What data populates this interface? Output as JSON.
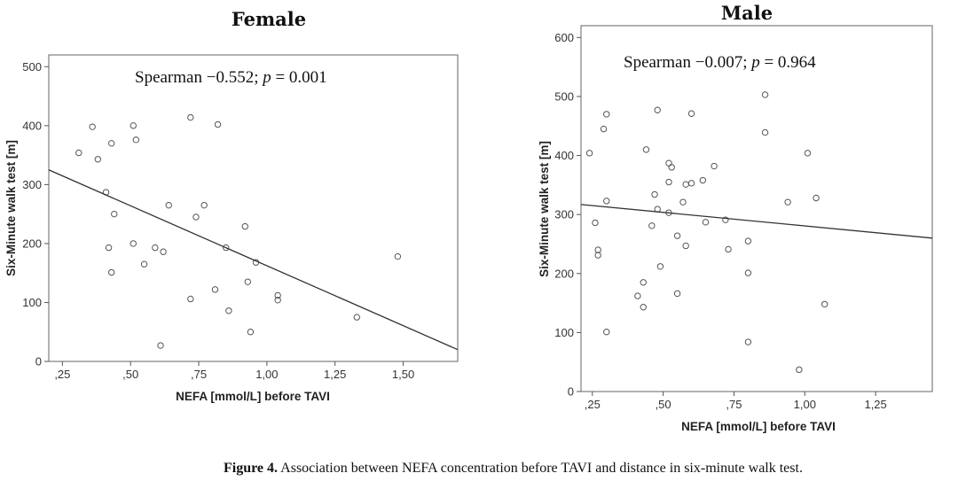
{
  "figure": {
    "caption_label": "Figure 4.",
    "caption_text": "Association between NEFA concentration before TAVI and distance in six-minute walk test."
  },
  "chart_data": [
    {
      "type": "scatter",
      "title": "Female",
      "annotation": {
        "prefix": "Spearman −0.552; ",
        "p_symbol": "p",
        "p_value": " = 0.001"
      },
      "xlabel": "NEFA [mmol/L] before TAVI",
      "ylabel": "Six-Minute walk test [m]",
      "xlim": [
        0.2,
        1.7
      ],
      "ylim": [
        0,
        520
      ],
      "xticks": [
        0.25,
        0.5,
        0.75,
        1.0,
        1.25,
        1.5
      ],
      "xtick_labels": [
        ",25",
        ",50",
        ",75",
        "1,00",
        "1,25",
        "1,50"
      ],
      "yticks": [
        0,
        100,
        200,
        300,
        400,
        500
      ],
      "ytick_labels": [
        "0",
        "100",
        "200",
        "300",
        "400",
        "500"
      ],
      "points": [
        {
          "x": 0.31,
          "y": 354
        },
        {
          "x": 0.36,
          "y": 398
        },
        {
          "x": 0.38,
          "y": 343
        },
        {
          "x": 0.41,
          "y": 287
        },
        {
          "x": 0.42,
          "y": 193
        },
        {
          "x": 0.43,
          "y": 151
        },
        {
          "x": 0.43,
          "y": 370
        },
        {
          "x": 0.44,
          "y": 250
        },
        {
          "x": 0.51,
          "y": 400
        },
        {
          "x": 0.51,
          "y": 200
        },
        {
          "x": 0.52,
          "y": 376
        },
        {
          "x": 0.55,
          "y": 165
        },
        {
          "x": 0.59,
          "y": 193
        },
        {
          "x": 0.61,
          "y": 27
        },
        {
          "x": 0.62,
          "y": 186
        },
        {
          "x": 0.64,
          "y": 265
        },
        {
          "x": 0.72,
          "y": 414
        },
        {
          "x": 0.72,
          "y": 106
        },
        {
          "x": 0.74,
          "y": 245
        },
        {
          "x": 0.77,
          "y": 265
        },
        {
          "x": 0.81,
          "y": 122
        },
        {
          "x": 0.82,
          "y": 402
        },
        {
          "x": 0.85,
          "y": 193
        },
        {
          "x": 0.86,
          "y": 86
        },
        {
          "x": 0.92,
          "y": 229
        },
        {
          "x": 0.93,
          "y": 135
        },
        {
          "x": 0.94,
          "y": 50
        },
        {
          "x": 0.96,
          "y": 168
        },
        {
          "x": 1.04,
          "y": 112
        },
        {
          "x": 1.04,
          "y": 104
        },
        {
          "x": 1.33,
          "y": 75
        },
        {
          "x": 1.48,
          "y": 178
        }
      ],
      "trendline": {
        "x0": 0.2,
        "y0": 325,
        "x1": 1.7,
        "y1": 20
      }
    },
    {
      "type": "scatter",
      "title": "Male",
      "annotation": {
        "prefix": "Spearman −0.007; ",
        "p_symbol": "p",
        "p_value": " = 0.964"
      },
      "xlabel": "NEFA [mmol/L] before TAVI",
      "ylabel": "Six-Minute walk test [m]",
      "xlim": [
        0.21,
        1.45
      ],
      "ylim": [
        0,
        620
      ],
      "xticks": [
        0.25,
        0.5,
        0.75,
        1.0,
        1.25
      ],
      "xtick_labels": [
        ",25",
        ",50",
        ",75",
        "1,00",
        "1,25"
      ],
      "yticks": [
        0,
        100,
        200,
        300,
        400,
        500,
        600
      ],
      "ytick_labels": [
        "0",
        "100",
        "200",
        "300",
        "400",
        "500",
        "600"
      ],
      "points": [
        {
          "x": 0.24,
          "y": 404
        },
        {
          "x": 0.26,
          "y": 286
        },
        {
          "x": 0.27,
          "y": 240
        },
        {
          "x": 0.27,
          "y": 231
        },
        {
          "x": 0.29,
          "y": 445
        },
        {
          "x": 0.3,
          "y": 470
        },
        {
          "x": 0.3,
          "y": 323
        },
        {
          "x": 0.3,
          "y": 101
        },
        {
          "x": 0.41,
          "y": 162
        },
        {
          "x": 0.43,
          "y": 143
        },
        {
          "x": 0.43,
          "y": 185
        },
        {
          "x": 0.44,
          "y": 410
        },
        {
          "x": 0.46,
          "y": 281
        },
        {
          "x": 0.47,
          "y": 334
        },
        {
          "x": 0.48,
          "y": 477
        },
        {
          "x": 0.48,
          "y": 309
        },
        {
          "x": 0.49,
          "y": 212
        },
        {
          "x": 0.52,
          "y": 387
        },
        {
          "x": 0.52,
          "y": 355
        },
        {
          "x": 0.52,
          "y": 303
        },
        {
          "x": 0.53,
          "y": 380
        },
        {
          "x": 0.55,
          "y": 264
        },
        {
          "x": 0.55,
          "y": 166
        },
        {
          "x": 0.57,
          "y": 321
        },
        {
          "x": 0.58,
          "y": 351
        },
        {
          "x": 0.58,
          "y": 247
        },
        {
          "x": 0.6,
          "y": 471
        },
        {
          "x": 0.6,
          "y": 353
        },
        {
          "x": 0.64,
          "y": 358
        },
        {
          "x": 0.65,
          "y": 287
        },
        {
          "x": 0.68,
          "y": 382
        },
        {
          "x": 0.72,
          "y": 291
        },
        {
          "x": 0.73,
          "y": 241
        },
        {
          "x": 0.8,
          "y": 255
        },
        {
          "x": 0.8,
          "y": 201
        },
        {
          "x": 0.8,
          "y": 84
        },
        {
          "x": 0.86,
          "y": 503
        },
        {
          "x": 0.86,
          "y": 439
        },
        {
          "x": 0.94,
          "y": 321
        },
        {
          "x": 0.98,
          "y": 37
        },
        {
          "x": 1.01,
          "y": 404
        },
        {
          "x": 1.04,
          "y": 328
        },
        {
          "x": 1.07,
          "y": 148
        }
      ],
      "trendline": {
        "x0": 0.21,
        "y0": 317,
        "x1": 1.45,
        "y1": 260
      }
    }
  ]
}
